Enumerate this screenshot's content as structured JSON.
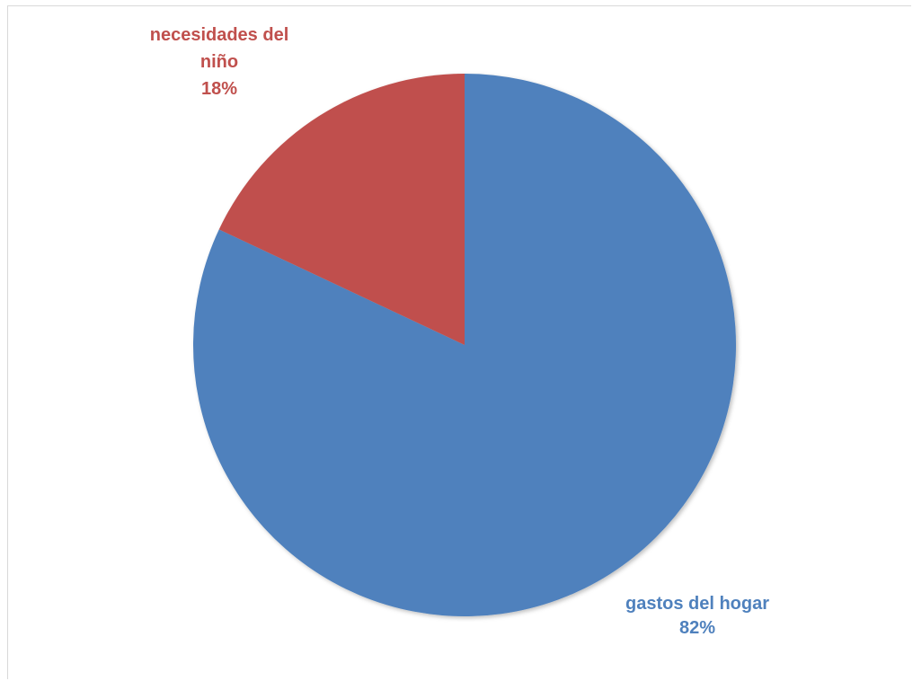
{
  "chart_data": {
    "type": "pie",
    "title": "",
    "categories": [
      "gastos del hogar",
      "necesidades del niño"
    ],
    "values": [
      82,
      18
    ],
    "labels": [
      {
        "lines": [
          "gastos del hogar",
          "82%"
        ]
      },
      {
        "lines": [
          "necesidades del",
          "niño",
          "18%"
        ]
      }
    ],
    "colors": [
      "#4f81bd",
      "#c0504d"
    ],
    "legend": "none",
    "start_angle": "12 o'clock",
    "direction": "clockwise"
  }
}
